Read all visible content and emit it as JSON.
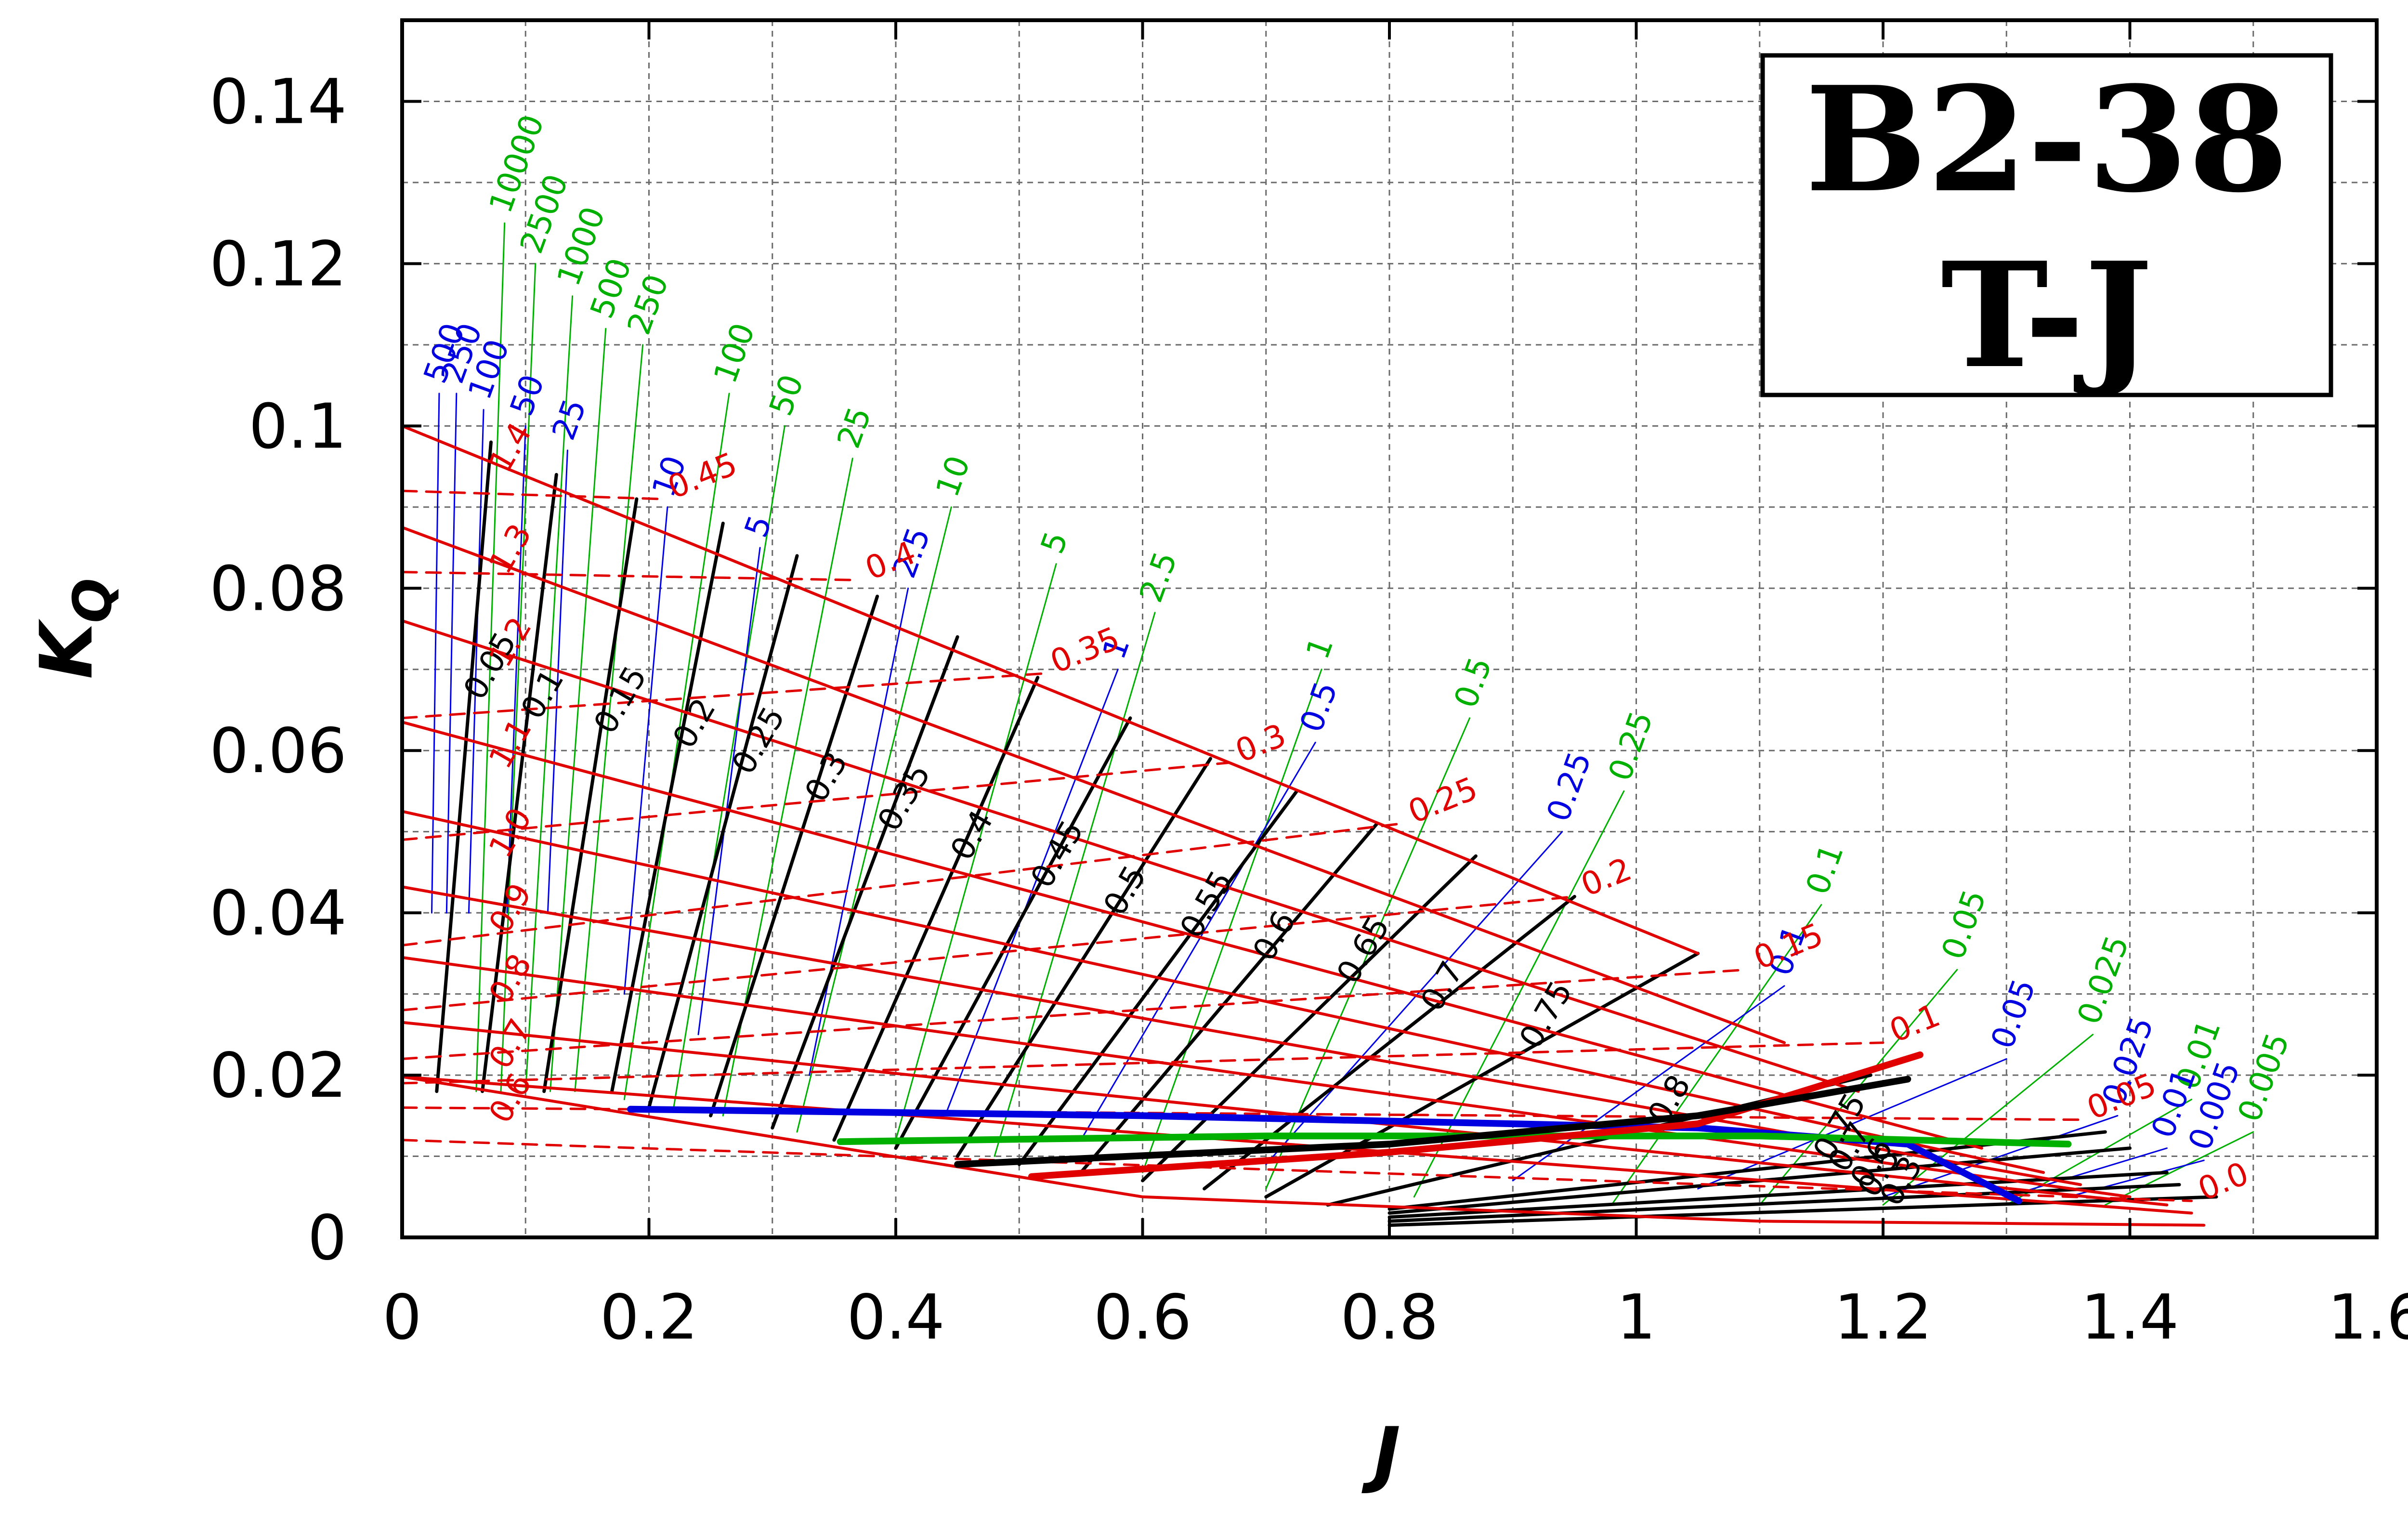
{
  "chart_data": {
    "type": "line",
    "title_lines": [
      "B2-38",
      "T-J"
    ],
    "xlabel": "J",
    "ylabel_main": "K",
    "ylabel_sub": "Q",
    "xlim": [
      0,
      1.6
    ],
    "ylim": [
      0,
      0.15
    ],
    "x_ticks": [
      "0",
      "0.2",
      "0.4",
      "0.6",
      "0.8",
      "1",
      "1.2",
      "1.4",
      "1.6"
    ],
    "y_ticks": [
      "0",
      "0.02",
      "0.04",
      "0.06",
      "0.08",
      "0.1",
      "0.12",
      "0.14"
    ],
    "grid": true,
    "colors": {
      "pitch": "#e00000",
      "efficiency": "#000000",
      "green_family": "#00b000",
      "blue_family": "#0000e0"
    },
    "pitch_lines": [
      {
        "label": "1.4",
        "x": [
          0,
          1.05
        ],
        "y": [
          0.1,
          0.035
        ]
      },
      {
        "label": "1.3",
        "x": [
          0,
          1.12
        ],
        "y": [
          0.0875,
          0.024
        ]
      },
      {
        "label": "1.2",
        "x": [
          0,
          1.18
        ],
        "y": [
          0.076,
          0.018
        ]
      },
      {
        "label": "1.1",
        "x": [
          0,
          1.28
        ],
        "y": [
          0.0635,
          0.011
        ]
      },
      {
        "label": "1.0",
        "x": [
          0,
          1.33
        ],
        "y": [
          0.0525,
          0.008
        ]
      },
      {
        "label": "0.9",
        "x": [
          0,
          1.36
        ],
        "y": [
          0.0432,
          0.0065
        ]
      },
      {
        "label": "0.8",
        "x": [
          0,
          1.4
        ],
        "y": [
          0.0345,
          0.005
        ]
      },
      {
        "label": "0.7",
        "x": [
          0,
          1.43
        ],
        "y": [
          0.0265,
          0.004
        ]
      },
      {
        "label": "0.6",
        "x": [
          0,
          1.45
        ],
        "y": [
          0.0198,
          0.003
        ]
      }
    ],
    "pitch_boundary": {
      "x": [
        0,
        0.6,
        1.1,
        1.46
      ],
      "y": [
        0.0198,
        0.005,
        0.002,
        0.0015
      ]
    },
    "dashed_series": [
      {
        "label": "0.45",
        "x": [
          0,
          0.21
        ],
        "y": [
          0.092,
          0.091
        ]
      },
      {
        "label": "0.4",
        "x": [
          0,
          0.37
        ],
        "y": [
          0.082,
          0.081
        ]
      },
      {
        "label": "0.35",
        "x": [
          0,
          0.52
        ],
        "y": [
          0.064,
          0.0695
        ]
      },
      {
        "label": "0.3",
        "x": [
          0,
          0.67
        ],
        "y": [
          0.049,
          0.0585
        ]
      },
      {
        "label": "0.25",
        "x": [
          0,
          0.81
        ],
        "y": [
          0.036,
          0.051
        ]
      },
      {
        "label": "0.2",
        "x": [
          0,
          0.95
        ],
        "y": [
          0.028,
          0.042
        ]
      },
      {
        "label": "0.15",
        "x": [
          0,
          1.09
        ],
        "y": [
          0.022,
          0.033
        ]
      },
      {
        "label": "0.1",
        "x": [
          0,
          1.2
        ],
        "y": [
          0.019,
          0.024
        ]
      },
      {
        "label": "0.05",
        "x": [
          0,
          1.36
        ],
        "y": [
          0.016,
          0.0145
        ]
      },
      {
        "label": "0.0",
        "x": [
          0,
          1.45
        ],
        "y": [
          0.012,
          0.0045
        ]
      }
    ],
    "efficiency_lines": [
      {
        "label": "0.05",
        "x": [
          0.028,
          0.072
        ],
        "y": [
          0.018,
          0.098
        ]
      },
      {
        "label": "0.1",
        "x": [
          0.065,
          0.125
        ],
        "y": [
          0.018,
          0.094
        ]
      },
      {
        "label": "0.15",
        "x": [
          0.115,
          0.19
        ],
        "y": [
          0.018,
          0.091
        ]
      },
      {
        "label": "0.2",
        "x": [
          0.17,
          0.26
        ],
        "y": [
          0.018,
          0.088
        ]
      },
      {
        "label": "0.25",
        "x": [
          0.2,
          0.32
        ],
        "y": [
          0.016,
          0.084
        ]
      },
      {
        "label": "0.3",
        "x": [
          0.25,
          0.385
        ],
        "y": [
          0.015,
          0.079
        ]
      },
      {
        "label": "0.35",
        "x": [
          0.3,
          0.45
        ],
        "y": [
          0.0135,
          0.074
        ]
      },
      {
        "label": "0.4",
        "x": [
          0.35,
          0.515
        ],
        "y": [
          0.012,
          0.069
        ]
      },
      {
        "label": "0.45",
        "x": [
          0.4,
          0.59
        ],
        "y": [
          0.011,
          0.064
        ]
      },
      {
        "label": "0.5",
        "x": [
          0.45,
          0.655
        ],
        "y": [
          0.01,
          0.059
        ]
      },
      {
        "label": "0.55",
        "x": [
          0.5,
          0.725
        ],
        "y": [
          0.009,
          0.055
        ]
      },
      {
        "label": "0.6",
        "x": [
          0.55,
          0.79
        ],
        "y": [
          0.008,
          0.051
        ]
      },
      {
        "label": "0.65",
        "x": [
          0.6,
          0.87
        ],
        "y": [
          0.007,
          0.047
        ]
      },
      {
        "label": "0.7",
        "x": [
          0.65,
          0.95
        ],
        "y": [
          0.006,
          0.042
        ]
      },
      {
        "label": "0.75",
        "x": [
          0.7,
          1.05
        ],
        "y": [
          0.005,
          0.035
        ]
      },
      {
        "label": "0.8",
        "x": [
          0.75,
          1.19
        ],
        "y": [
          0.004,
          0.02
        ]
      },
      {
        "label": "0.75",
        "x": [
          0.8,
          1.38
        ],
        "y": [
          0.0035,
          0.013
        ]
      },
      {
        "label": "0.7",
        "x": [
          0.8,
          1.4
        ],
        "y": [
          0.003,
          0.011
        ]
      },
      {
        "label": "0.6",
        "x": [
          0.8,
          1.43
        ],
        "y": [
          0.0025,
          0.008
        ]
      },
      {
        "label": "0.5",
        "x": [
          0.8,
          1.44
        ],
        "y": [
          0.002,
          0.0065
        ]
      },
      {
        "label": "0.3",
        "x": [
          0.8,
          1.47
        ],
        "y": [
          0.0015,
          0.005
        ]
      }
    ],
    "green_curves": [
      {
        "label": "10000",
        "x": [
          0.06,
          0.083
        ],
        "y": [
          0.018,
          0.125
        ]
      },
      {
        "label": "2500",
        "x": [
          0.08,
          0.108
        ],
        "y": [
          0.018,
          0.12
        ]
      },
      {
        "label": "1000",
        "x": [
          0.1,
          0.138
        ],
        "y": [
          0.018,
          0.116
        ]
      },
      {
        "label": "500",
        "x": [
          0.12,
          0.165
        ],
        "y": [
          0.018,
          0.112
        ]
      },
      {
        "label": "250",
        "x": [
          0.14,
          0.195
        ],
        "y": [
          0.018,
          0.11
        ]
      },
      {
        "label": "100",
        "x": [
          0.18,
          0.265
        ],
        "y": [
          0.017,
          0.104
        ]
      },
      {
        "label": "50",
        "x": [
          0.22,
          0.31
        ],
        "y": [
          0.016,
          0.1
        ]
      },
      {
        "label": "25",
        "x": [
          0.26,
          0.365
        ],
        "y": [
          0.015,
          0.096
        ]
      },
      {
        "label": "10",
        "x": [
          0.32,
          0.445
        ],
        "y": [
          0.013,
          0.09
        ]
      },
      {
        "label": "5",
        "x": [
          0.4,
          0.53
        ],
        "y": [
          0.012,
          0.083
        ]
      },
      {
        "label": "2.5",
        "x": [
          0.48,
          0.61
        ],
        "y": [
          0.01,
          0.077
        ]
      },
      {
        "label": "1",
        "x": [
          0.6,
          0.745
        ],
        "y": [
          0.008,
          0.07
        ]
      },
      {
        "label": "0.5",
        "x": [
          0.7,
          0.865
        ],
        "y": [
          0.006,
          0.064
        ]
      },
      {
        "label": "0.25",
        "x": [
          0.82,
          0.99
        ],
        "y": [
          0.005,
          0.055
        ]
      },
      {
        "label": "0.1",
        "x": [
          0.98,
          1.15
        ],
        "y": [
          0.004,
          0.041
        ]
      },
      {
        "label": "0.05",
        "x": [
          1.1,
          1.26
        ],
        "y": [
          0.004,
          0.033
        ]
      },
      {
        "label": "0.025",
        "x": [
          1.2,
          1.37
        ],
        "y": [
          0.004,
          0.025
        ]
      },
      {
        "label": "0.01",
        "x": [
          1.3,
          1.45
        ],
        "y": [
          0.004,
          0.017
        ]
      },
      {
        "label": "0.005",
        "x": [
          1.38,
          1.5
        ],
        "y": [
          0.004,
          0.013
        ]
      }
    ],
    "blue_curves": [
      {
        "label": "500",
        "x": [
          0.024,
          0.03
        ],
        "y": [
          0.04,
          0.104
        ]
      },
      {
        "label": "250",
        "x": [
          0.036,
          0.044
        ],
        "y": [
          0.04,
          0.104
        ]
      },
      {
        "label": "100",
        "x": [
          0.054,
          0.066
        ],
        "y": [
          0.04,
          0.102
        ]
      },
      {
        "label": "50",
        "x": [
          0.085,
          0.1
        ],
        "y": [
          0.04,
          0.1
        ]
      },
      {
        "label": "25",
        "x": [
          0.118,
          0.134
        ],
        "y": [
          0.04,
          0.097
        ]
      },
      {
        "label": "10",
        "x": [
          0.18,
          0.215
        ],
        "y": [
          0.03,
          0.09
        ]
      },
      {
        "label": "5",
        "x": [
          0.24,
          0.29
        ],
        "y": [
          0.025,
          0.085
        ]
      },
      {
        "label": "2.5",
        "x": [
          0.33,
          0.41
        ],
        "y": [
          0.02,
          0.08
        ]
      },
      {
        "label": "1",
        "x": [
          0.44,
          0.58
        ],
        "y": [
          0.015,
          0.07
        ]
      },
      {
        "label": "0.5",
        "x": [
          0.55,
          0.74
        ],
        "y": [
          0.012,
          0.061
        ]
      },
      {
        "label": "0.25",
        "x": [
          0.7,
          0.94
        ],
        "y": [
          0.009,
          0.05
        ]
      },
      {
        "label": "0.1",
        "x": [
          0.9,
          1.12
        ],
        "y": [
          0.007,
          0.031
        ]
      },
      {
        "label": "0.05",
        "x": [
          1.05,
          1.3
        ],
        "y": [
          0.006,
          0.022
        ]
      },
      {
        "label": "0.025",
        "x": [
          1.2,
          1.39
        ],
        "y": [
          0.005,
          0.015
        ]
      },
      {
        "label": "0.01",
        "x": [
          1.3,
          1.43
        ],
        "y": [
          0.005,
          0.011
        ]
      },
      {
        "label": "0.005",
        "x": [
          1.35,
          1.46
        ],
        "y": [
          0.005,
          0.0095
        ]
      }
    ],
    "bold_curves": [
      {
        "color": "#0000e0",
        "x": [
          0.185,
          0.6,
          1.05,
          1.22,
          1.31
        ],
        "y": [
          0.0158,
          0.015,
          0.0135,
          0.0115,
          0.0045
        ]
      },
      {
        "color": "#00b000",
        "x": [
          0.355,
          0.7,
          1.1,
          1.35
        ],
        "y": [
          0.0118,
          0.0125,
          0.0125,
          0.0115
        ]
      },
      {
        "color": "#e00000",
        "x": [
          0.51,
          0.8,
          1.05,
          1.23
        ],
        "y": [
          0.0075,
          0.0105,
          0.014,
          0.0225
        ]
      },
      {
        "color": "#000000",
        "x": [
          0.45,
          0.8,
          1.05,
          1.22
        ],
        "y": [
          0.009,
          0.0115,
          0.015,
          0.0195
        ]
      }
    ]
  }
}
